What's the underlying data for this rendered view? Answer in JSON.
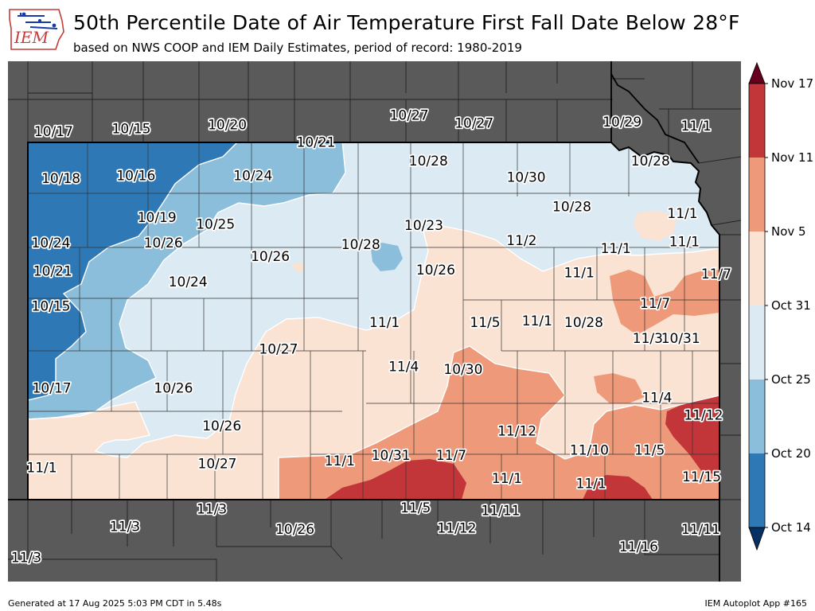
{
  "header": {
    "logo_text": "IEM",
    "title": "50th Percentile Date of Air Temperature First Fall Date Below 28°F",
    "subtitle": "based on NWS COOP and IEM Daily Estimates, period of record: 1980-2019"
  },
  "legend": {
    "labels": [
      "Nov 17",
      "Nov 11",
      "Nov 5",
      "Oct 31",
      "Oct 25",
      "Oct 20",
      "Oct 14"
    ],
    "colors": {
      "below": "#053061",
      "band1": "#2e78b6",
      "band2": "#8bbedb",
      "band3": "#dceaf3",
      "band4": "#fbe3d4",
      "band5": "#ee9a7a",
      "band6": "#c2363a",
      "above": "#67001f",
      "outside": "#5a5a5a"
    }
  },
  "map": {
    "point_labels": [
      {
        "text": "10/17",
        "lon": -101.85,
        "lat": 39.8
      },
      {
        "text": "10/15",
        "lon": -101.0,
        "lat": 39.82
      },
      {
        "text": "10/20",
        "lon": -99.95,
        "lat": 39.85
      },
      {
        "text": "10/21",
        "lon": -98.98,
        "lat": 39.72
      },
      {
        "text": "10/27",
        "lon": -97.96,
        "lat": 39.92
      },
      {
        "text": "10/27",
        "lon": -97.25,
        "lat": 39.86
      },
      {
        "text": "10/29",
        "lon": -95.63,
        "lat": 39.87
      },
      {
        "text": "11/1",
        "lon": -94.82,
        "lat": 39.84
      },
      {
        "text": "10/18",
        "lon": -101.77,
        "lat": 39.45
      },
      {
        "text": "10/16",
        "lon": -100.95,
        "lat": 39.47
      },
      {
        "text": "10/24",
        "lon": -99.67,
        "lat": 39.47
      },
      {
        "text": "10/28",
        "lon": -97.75,
        "lat": 39.58
      },
      {
        "text": "10/30",
        "lon": -96.68,
        "lat": 39.46
      },
      {
        "text": "10/28",
        "lon": -95.32,
        "lat": 39.58
      },
      {
        "text": "10/28",
        "lon": -96.18,
        "lat": 39.24
      },
      {
        "text": "11/1",
        "lon": -94.97,
        "lat": 39.19
      },
      {
        "text": "10/19",
        "lon": -100.72,
        "lat": 39.16
      },
      {
        "text": "10/25",
        "lon": -100.08,
        "lat": 39.11
      },
      {
        "text": "10/23",
        "lon": -97.8,
        "lat": 39.1
      },
      {
        "text": "10/24",
        "lon": -101.88,
        "lat": 38.97
      },
      {
        "text": "10/26",
        "lon": -100.65,
        "lat": 38.97
      },
      {
        "text": "10/28",
        "lon": -98.49,
        "lat": 38.96
      },
      {
        "text": "11/2",
        "lon": -96.73,
        "lat": 38.99
      },
      {
        "text": "11/1",
        "lon": -94.95,
        "lat": 38.98
      },
      {
        "text": "10/26",
        "lon": -99.48,
        "lat": 38.87
      },
      {
        "text": "11/1",
        "lon": -95.7,
        "lat": 38.93
      },
      {
        "text": "10/26",
        "lon": -97.67,
        "lat": 38.77
      },
      {
        "text": "10/21",
        "lon": -101.86,
        "lat": 38.76
      },
      {
        "text": "11/1",
        "lon": -96.1,
        "lat": 38.75
      },
      {
        "text": "11/7",
        "lon": -94.6,
        "lat": 38.74
      },
      {
        "text": "10/24",
        "lon": -100.38,
        "lat": 38.68
      },
      {
        "text": "10/15",
        "lon": -101.88,
        "lat": 38.5
      },
      {
        "text": "11/7",
        "lon": -95.27,
        "lat": 38.52
      },
      {
        "text": "11/1",
        "lon": -98.23,
        "lat": 38.38
      },
      {
        "text": "11/5",
        "lon": -97.13,
        "lat": 38.38
      },
      {
        "text": "11/1",
        "lon": -96.56,
        "lat": 38.39
      },
      {
        "text": "10/28",
        "lon": -96.05,
        "lat": 38.38
      },
      {
        "text": "11/3",
        "lon": -95.35,
        "lat": 38.26
      },
      {
        "text": "10/31",
        "lon": -94.99,
        "lat": 38.26
      },
      {
        "text": "10/27",
        "lon": -99.39,
        "lat": 38.18
      },
      {
        "text": "11/4",
        "lon": -98.02,
        "lat": 38.05
      },
      {
        "text": "10/30",
        "lon": -97.37,
        "lat": 38.03
      },
      {
        "text": "10/17",
        "lon": -101.87,
        "lat": 37.89
      },
      {
        "text": "10/26",
        "lon": -100.54,
        "lat": 37.89
      },
      {
        "text": "11/4",
        "lon": -95.25,
        "lat": 37.82
      },
      {
        "text": "10/26",
        "lon": -100.01,
        "lat": 37.61
      },
      {
        "text": "11/12",
        "lon": -96.78,
        "lat": 37.57
      },
      {
        "text": "11/12",
        "lon": -94.74,
        "lat": 37.69
      },
      {
        "text": "10/27",
        "lon": -100.06,
        "lat": 37.33
      },
      {
        "text": "11/1",
        "lon": -98.72,
        "lat": 37.35
      },
      {
        "text": "10/31",
        "lon": -98.16,
        "lat": 37.39
      },
      {
        "text": "11/7",
        "lon": -97.5,
        "lat": 37.39
      },
      {
        "text": "11/10",
        "lon": -95.99,
        "lat": 37.43
      },
      {
        "text": "11/5",
        "lon": -95.33,
        "lat": 37.43
      },
      {
        "text": "11/1",
        "lon": -101.98,
        "lat": 37.3
      },
      {
        "text": "11/1",
        "lon": -96.89,
        "lat": 37.22
      },
      {
        "text": "11/15",
        "lon": -94.76,
        "lat": 37.23
      },
      {
        "text": "11/1",
        "lon": -95.97,
        "lat": 37.18
      },
      {
        "text": "11/3",
        "lon": -100.12,
        "lat": 36.99
      },
      {
        "text": "11/5",
        "lon": -97.89,
        "lat": 37.0
      },
      {
        "text": "11/11",
        "lon": -96.96,
        "lat": 36.98
      },
      {
        "text": "11/3",
        "lon": -101.07,
        "lat": 36.86
      },
      {
        "text": "10/26",
        "lon": -99.21,
        "lat": 36.84
      },
      {
        "text": "11/12",
        "lon": -97.44,
        "lat": 36.85
      },
      {
        "text": "11/11",
        "lon": -94.77,
        "lat": 36.84
      },
      {
        "text": "11/16",
        "lon": -95.45,
        "lat": 36.71
      },
      {
        "text": "11/3",
        "lon": -102.15,
        "lat": 36.63
      }
    ]
  },
  "footer": {
    "generated": "Generated at 17 Aug 2025 5:03 PM CDT in 5.48s",
    "app": "IEM Autoplot App #165"
  }
}
